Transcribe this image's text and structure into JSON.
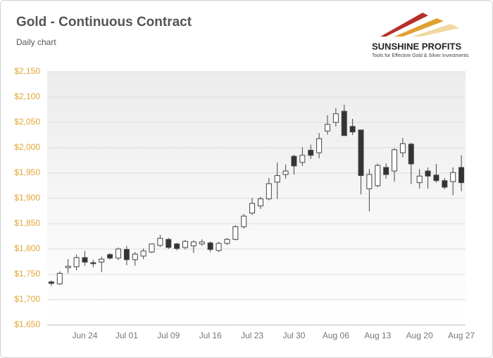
{
  "chart_data": {
    "type": "candlestick",
    "title": "Gold - Continuous Contract",
    "subtitle": "Daily chart",
    "brand": "SUNSHINE PROFITS",
    "tagline": "Tools for Effective Gold & Silver Investments",
    "categories": [
      null,
      null,
      null,
      null,
      "Jun 24",
      null,
      null,
      null,
      null,
      "Jul 01",
      null,
      null,
      null,
      null,
      "Jul 09",
      null,
      null,
      null,
      null,
      "Jul 16",
      null,
      null,
      null,
      null,
      "Jul 23",
      null,
      null,
      null,
      null,
      "Jul 30",
      null,
      null,
      null,
      null,
      "Aug 06",
      null,
      null,
      null,
      null,
      "Aug 13",
      null,
      null,
      null,
      null,
      "Aug 20",
      null,
      null,
      null,
      null,
      "Aug 27"
    ],
    "open": [
      1735,
      1731,
      1763,
      1765,
      1783,
      1773,
      1774,
      1789,
      1782,
      1799,
      1779,
      1786,
      1794,
      1807,
      1819,
      1810,
      1803,
      1806,
      1810,
      1812,
      1797,
      1811,
      1819,
      1844,
      1871,
      1885,
      1899,
      1932,
      1947,
      1983,
      1971,
      1995,
      1990,
      2033,
      2050,
      2072,
      2042,
      2035,
      1919,
      1925,
      1961,
      1954,
      1990,
      2007,
      1931,
      1954,
      1946,
      1935,
      1933,
      1961
    ],
    "high": [
      1738,
      1756,
      1780,
      1789,
      1796,
      1779,
      1785,
      1792,
      1803,
      1806,
      1794,
      1801,
      1811,
      1828,
      1822,
      1812,
      1818,
      1817,
      1819,
      1815,
      1814,
      1822,
      1847,
      1869,
      1901,
      1903,
      1940,
      1971,
      1967,
      1986,
      2001,
      2006,
      2029,
      2064,
      2078,
      2085,
      2057,
      2035,
      1958,
      1969,
      1969,
      1999,
      2019,
      2010,
      1958,
      1961,
      1968,
      1940,
      1961,
      1985
    ],
    "low": [
      1727,
      1729,
      1752,
      1758,
      1767,
      1764,
      1754,
      1779,
      1778,
      1768,
      1767,
      1780,
      1792,
      1804,
      1800,
      1797,
      1799,
      1792,
      1806,
      1794,
      1794,
      1808,
      1817,
      1840,
      1867,
      1879,
      1896,
      1899,
      1939,
      1947,
      1964,
      1978,
      1979,
      2026,
      2042,
      2023,
      2025,
      1908,
      1874,
      1922,
      1939,
      1933,
      1981,
      1928,
      1919,
      1919,
      1931,
      1918,
      1906,
      1914
    ],
    "close": [
      1732,
      1752,
      1766,
      1783,
      1774,
      1771,
      1780,
      1782,
      1800,
      1779,
      1790,
      1796,
      1810,
      1821,
      1803,
      1801,
      1815,
      1814,
      1814,
      1799,
      1811,
      1819,
      1844,
      1865,
      1890,
      1899,
      1929,
      1945,
      1954,
      1964,
      1985,
      1985,
      2018,
      2046,
      2067,
      2024,
      2031,
      1945,
      1947,
      1965,
      1947,
      1996,
      2008,
      1968,
      1944,
      1944,
      1935,
      1922,
      1951,
      1931
    ],
    "up_color": "#ffffff",
    "down_color": "#333333",
    "ylim": [
      1650,
      2150
    ],
    "yticks": [
      {
        "value": 1650,
        "label": "$1,650"
      },
      {
        "value": 1700,
        "label": "$1,700"
      },
      {
        "value": 1750,
        "label": "$1,750"
      },
      {
        "value": 1800,
        "label": "$1,800"
      },
      {
        "value": 1850,
        "label": "$1,850"
      },
      {
        "value": 1900,
        "label": "$1,900"
      },
      {
        "value": 1950,
        "label": "$1,950"
      },
      {
        "value": 2000,
        "label": "$2,000"
      },
      {
        "value": 2050,
        "label": "$2,050"
      },
      {
        "value": 2100,
        "label": "$2,100"
      },
      {
        "value": 2150,
        "label": "$2,150"
      }
    ],
    "grid": true
  }
}
